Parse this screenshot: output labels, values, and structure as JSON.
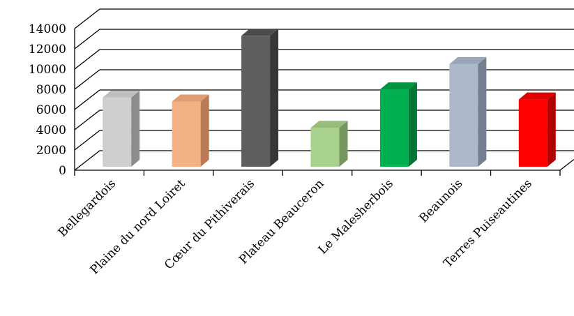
{
  "chart_data": {
    "type": "bar",
    "title": "",
    "xlabel": "",
    "ylabel": "",
    "ylim": [
      0,
      14000
    ],
    "yticks": [
      0,
      2000,
      4000,
      6000,
      8000,
      10000,
      12000,
      14000
    ],
    "grid": true,
    "three_d": true,
    "categories": [
      "Bellegardois",
      "Plaine du nord Loiret",
      "Cœur du Pithiverais",
      "Plateau Beauceron",
      "Le Malesherbois",
      "Beaunois",
      "Terres Puiseautines"
    ],
    "values": [
      7400,
      7000,
      13500,
      4400,
      8200,
      10700,
      7200
    ],
    "colors": [
      {
        "front": "#d0cece",
        "side": "#8c8c8c",
        "top": "#bfbdbd"
      },
      {
        "front": "#f4b183",
        "side": "#b87b55",
        "top": "#dd9e73"
      },
      {
        "front": "#5e5e5e",
        "side": "#373737",
        "top": "#4b4b4b"
      },
      {
        "front": "#a9d18e",
        "side": "#76965f",
        "top": "#96bd7b"
      },
      {
        "front": "#00b050",
        "side": "#007534",
        "top": "#00963f"
      },
      {
        "front": "#adb9ca",
        "side": "#738090",
        "top": "#9aa6b8"
      },
      {
        "front": "#ff0000",
        "side": "#b30000",
        "top": "#e00000"
      }
    ]
  }
}
